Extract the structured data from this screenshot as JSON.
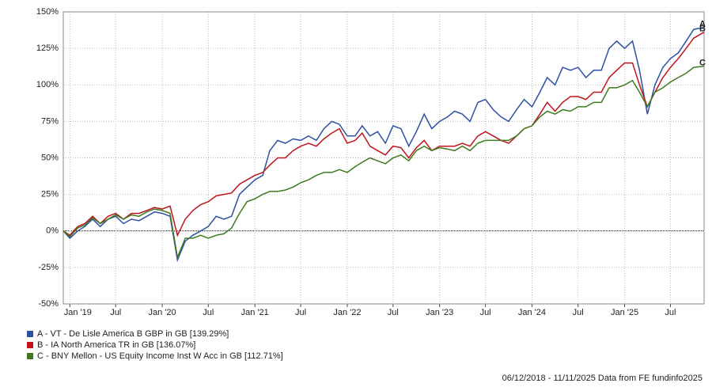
{
  "chart_data": {
    "type": "line",
    "x": [
      "2018-12-06",
      "2019-01",
      "2019-02",
      "2019-03",
      "2019-04",
      "2019-05",
      "2019-06",
      "2019-07",
      "2019-08",
      "2019-09",
      "2019-10",
      "2019-11",
      "2019-12",
      "2020-01",
      "2020-02",
      "2020-03",
      "2020-04",
      "2020-05",
      "2020-06",
      "2020-07",
      "2020-08",
      "2020-09",
      "2020-10",
      "2020-11",
      "2020-12",
      "2021-01",
      "2021-02",
      "2021-03",
      "2021-04",
      "2021-05",
      "2021-06",
      "2021-07",
      "2021-08",
      "2021-09",
      "2021-10",
      "2021-11",
      "2021-12",
      "2022-01",
      "2022-02",
      "2022-03",
      "2022-04",
      "2022-05",
      "2022-06",
      "2022-07",
      "2022-08",
      "2022-09",
      "2022-10",
      "2022-11",
      "2022-12",
      "2023-01",
      "2023-02",
      "2023-03",
      "2023-04",
      "2023-05",
      "2023-06",
      "2023-07",
      "2023-08",
      "2023-09",
      "2023-10",
      "2023-11",
      "2023-12",
      "2024-01",
      "2024-02",
      "2024-03",
      "2024-04",
      "2024-05",
      "2024-06",
      "2024-07",
      "2024-08",
      "2024-09",
      "2024-10",
      "2024-11",
      "2024-12",
      "2025-01",
      "2025-02",
      "2025-03",
      "2025-04",
      "2025-05",
      "2025-06",
      "2025-07",
      "2025-08",
      "2025-09",
      "2025-10",
      "2025-11-11"
    ],
    "xlim": [
      "2018-12-06",
      "2025-11-11"
    ],
    "xticks": [
      {
        "value": "2019-01",
        "label": "Jan '19"
      },
      {
        "value": "2019-07",
        "label": "Jul"
      },
      {
        "value": "2020-01",
        "label": "Jan '20"
      },
      {
        "value": "2020-07",
        "label": "Jul"
      },
      {
        "value": "2021-01",
        "label": "Jan '21"
      },
      {
        "value": "2021-07",
        "label": "Jul"
      },
      {
        "value": "2022-01",
        "label": "Jan '22"
      },
      {
        "value": "2022-07",
        "label": "Jul"
      },
      {
        "value": "2023-01",
        "label": "Jan '23"
      },
      {
        "value": "2023-07",
        "label": "Jul"
      },
      {
        "value": "2024-01",
        "label": "Jan '24"
      },
      {
        "value": "2024-07",
        "label": "Jul"
      },
      {
        "value": "2025-01",
        "label": "Jan '25"
      },
      {
        "value": "2025-07",
        "label": "Jul"
      }
    ],
    "ylim": [
      -50,
      150
    ],
    "yticks": [
      {
        "value": -50,
        "label": "-50%"
      },
      {
        "value": -25,
        "label": "-25%"
      },
      {
        "value": 0,
        "label": "0%"
      },
      {
        "value": 25,
        "label": "25%"
      },
      {
        "value": 50,
        "label": "50%"
      },
      {
        "value": 75,
        "label": "75%"
      },
      {
        "value": 100,
        "label": "100%"
      },
      {
        "value": 125,
        "label": "125%"
      },
      {
        "value": 150,
        "label": "150%"
      }
    ],
    "grid": true,
    "series": [
      {
        "name": "A - VT - De Lisle America B GBP in GB [139.29%]",
        "end_label": "A",
        "color": "#2e4fa5",
        "values": [
          0,
          -5,
          0,
          3,
          8,
          3,
          8,
          10,
          5,
          8,
          7,
          10,
          13,
          12,
          10,
          -20,
          -7,
          -3,
          0,
          3,
          10,
          8,
          10,
          25,
          30,
          35,
          38,
          55,
          62,
          60,
          63,
          62,
          65,
          62,
          70,
          75,
          73,
          65,
          65,
          72,
          65,
          68,
          60,
          72,
          70,
          58,
          68,
          80,
          70,
          75,
          78,
          82,
          80,
          75,
          88,
          90,
          83,
          78,
          75,
          83,
          90,
          85,
          95,
          105,
          100,
          112,
          110,
          112,
          105,
          110,
          110,
          125,
          130,
          125,
          130,
          110,
          80,
          100,
          112,
          118,
          122,
          130,
          138,
          139.29
        ]
      },
      {
        "name": "B - IA North America TR in GB [136.07%]",
        "end_label": "B",
        "color": "#c0131b",
        "values": [
          0,
          -3,
          3,
          5,
          10,
          5,
          10,
          12,
          8,
          12,
          12,
          14,
          16,
          15,
          17,
          -3,
          8,
          14,
          18,
          20,
          24,
          25,
          26,
          32,
          35,
          38,
          40,
          45,
          50,
          50,
          55,
          58,
          60,
          58,
          63,
          67,
          70,
          60,
          62,
          67,
          58,
          55,
          52,
          58,
          57,
          50,
          57,
          62,
          55,
          58,
          58,
          58,
          60,
          58,
          65,
          68,
          65,
          62,
          60,
          65,
          70,
          72,
          80,
          88,
          82,
          88,
          92,
          92,
          90,
          95,
          95,
          105,
          110,
          115,
          115,
          100,
          85,
          95,
          105,
          112,
          118,
          125,
          132,
          136.07
        ]
      },
      {
        "name": "C - BNY Mellon - US Equity Income Inst W Acc in GB [112.71%]",
        "end_label": "C",
        "color": "#3f7a1e",
        "values": [
          0,
          -4,
          2,
          4,
          9,
          5,
          8,
          11,
          8,
          11,
          10,
          13,
          15,
          14,
          12,
          -18,
          -5,
          -5,
          -3,
          -5,
          -3,
          -2,
          2,
          12,
          20,
          22,
          25,
          27,
          27,
          28,
          30,
          33,
          35,
          38,
          40,
          40,
          42,
          40,
          44,
          47,
          50,
          48,
          46,
          50,
          52,
          48,
          55,
          58,
          55,
          57,
          56,
          55,
          58,
          55,
          60,
          62,
          62,
          62,
          62,
          65,
          70,
          72,
          78,
          82,
          80,
          83,
          82,
          85,
          85,
          88,
          88,
          98,
          98,
          100,
          103,
          95,
          85,
          95,
          98,
          102,
          105,
          108,
          112,
          112.71
        ]
      }
    ],
    "source": "06/12/2018 - 11/11/2025 Data from FE fundinfo2025"
  }
}
